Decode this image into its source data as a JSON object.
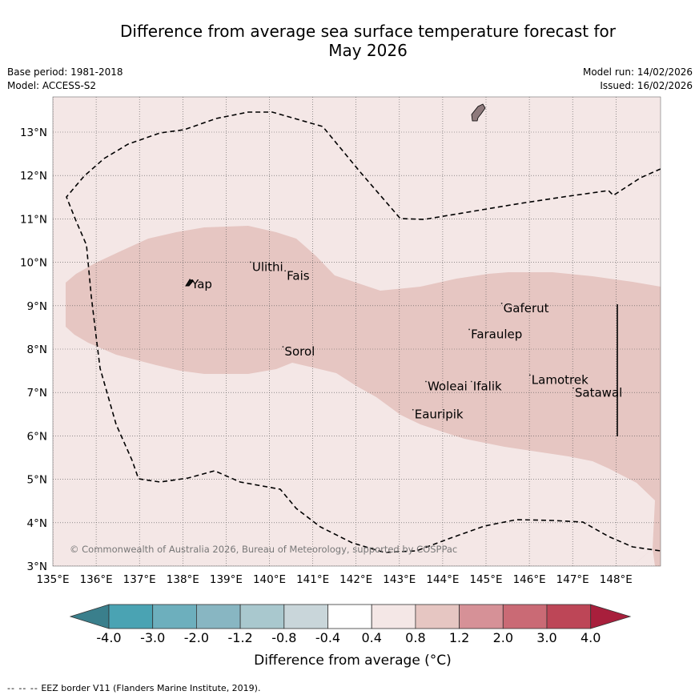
{
  "title": {
    "line1": "Difference from average sea surface temperature forecast for",
    "line2": "May 2026"
  },
  "meta": {
    "base_period": "Base period: 1981-2018",
    "model": "Model: ACCESS-S2",
    "model_run": "Model run: 14/02/2026",
    "issued": "Issued: 16/02/2026"
  },
  "map": {
    "lon_range": [
      135,
      149
    ],
    "lat_range": [
      3,
      13.8
    ],
    "lon_ticks": [
      {
        "v": 135,
        "label": "135°E"
      },
      {
        "v": 136,
        "label": "136°E"
      },
      {
        "v": 137,
        "label": "137°E"
      },
      {
        "v": 138,
        "label": "138°E"
      },
      {
        "v": 139,
        "label": "139°E"
      },
      {
        "v": 140,
        "label": "140°E"
      },
      {
        "v": 141,
        "label": "141°E"
      },
      {
        "v": 142,
        "label": "142°E"
      },
      {
        "v": 143,
        "label": "143°E"
      },
      {
        "v": 144,
        "label": "144°E"
      },
      {
        "v": 145,
        "label": "145°E"
      },
      {
        "v": 146,
        "label": "146°E"
      },
      {
        "v": 147,
        "label": "147°E"
      },
      {
        "v": 148,
        "label": "148°E"
      }
    ],
    "lat_ticks": [
      {
        "v": 3,
        "label": "3°N"
      },
      {
        "v": 4,
        "label": "4°N"
      },
      {
        "v": 5,
        "label": "5°N"
      },
      {
        "v": 6,
        "label": "6°N"
      },
      {
        "v": 7,
        "label": "7°N"
      },
      {
        "v": 8,
        "label": "8°N"
      },
      {
        "v": 9,
        "label": "9°N"
      },
      {
        "v": 10,
        "label": "10°N"
      },
      {
        "v": 11,
        "label": "11°N"
      },
      {
        "v": 12,
        "label": "12°N"
      },
      {
        "v": 13,
        "label": "13°N"
      }
    ],
    "background_color": "#f4e7e6",
    "anomaly_region_color": "#e6c6c2",
    "anomaly_region_class": "0.8 to 1.2",
    "places": [
      {
        "name": "Yap",
        "lon": 138.2,
        "lat": 9.4
      },
      {
        "name": "Ulithi",
        "lon": 139.6,
        "lat": 9.8
      },
      {
        "name": "Fais",
        "lon": 140.4,
        "lat": 9.6
      },
      {
        "name": "Sorol",
        "lon": 140.35,
        "lat": 7.85
      },
      {
        "name": "Gaferut",
        "lon": 145.4,
        "lat": 8.85
      },
      {
        "name": "Faraulep",
        "lon": 144.65,
        "lat": 8.25
      },
      {
        "name": "Woleai",
        "lon": 143.65,
        "lat": 7.05
      },
      {
        "name": "Ifalik",
        "lon": 144.7,
        "lat": 7.05
      },
      {
        "name": "Lamotrek",
        "lon": 146.05,
        "lat": 7.2
      },
      {
        "name": "Satawal",
        "lon": 147.05,
        "lat": 6.9
      },
      {
        "name": "Eauripik",
        "lon": 143.35,
        "lat": 6.4
      }
    ],
    "copyright": "© Commonwealth of Australia 2026, Bureau of Meteorology, supported by COSPPac"
  },
  "colorbar": {
    "title": "Difference from average (°C)",
    "colors": [
      "#3a7f8c",
      "#4aa3b3",
      "#6dafbd",
      "#88b6c2",
      "#a9c8ce",
      "#c9d6da",
      "#ffffff",
      "#f4e7e6",
      "#e6c6c2",
      "#d69197",
      "#ca6a75",
      "#bd4657",
      "#a81f3c"
    ],
    "labels": [
      "-4.0",
      "-3.0",
      "-2.0",
      "-1.2",
      "-0.8",
      "-0.4",
      "0.4",
      "0.8",
      "1.2",
      "2.0",
      "3.0",
      "4.0"
    ]
  },
  "footer": {
    "dash_symbol": "--  --  --",
    "text": "EEZ border V11 (Flanders Marine Institute, 2019)."
  }
}
